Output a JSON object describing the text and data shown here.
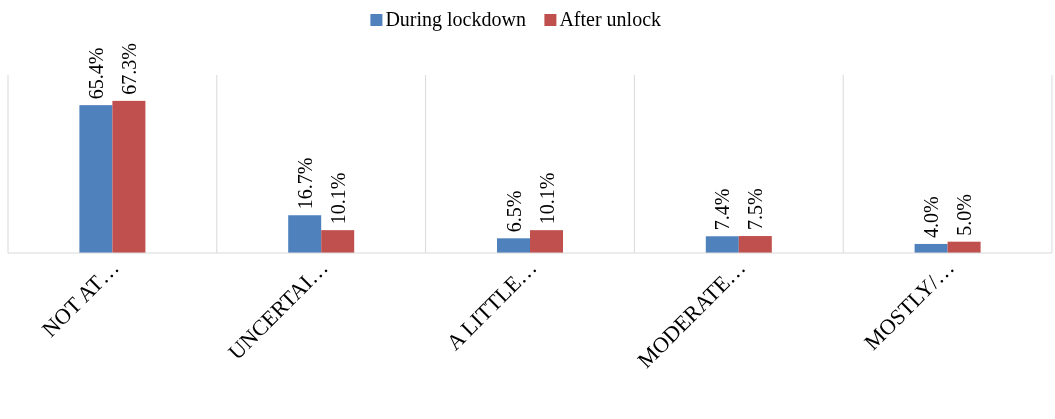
{
  "chart_data": {
    "type": "bar",
    "categories": [
      "NOT AT…",
      "UNCERTAI…",
      "A LITTLE…",
      "MODERATE…",
      "MOSTLY/…"
    ],
    "series": [
      {
        "name": "During lockdown",
        "color": "#4f81bd",
        "values": [
          65.4,
          16.7,
          6.5,
          7.4,
          4.0
        ],
        "value_labels": [
          "65.4%",
          "16.7%",
          "6.5%",
          "7.4%",
          "4.0%"
        ]
      },
      {
        "name": "After unlock",
        "color": "#c0504d",
        "values": [
          67.3,
          10.1,
          10.1,
          7.5,
          5.0
        ],
        "value_labels": [
          "67.3%",
          "10.1%",
          "10.1%",
          "7.5%",
          "5.0%"
        ]
      }
    ],
    "grid": "x",
    "legend": "top"
  }
}
